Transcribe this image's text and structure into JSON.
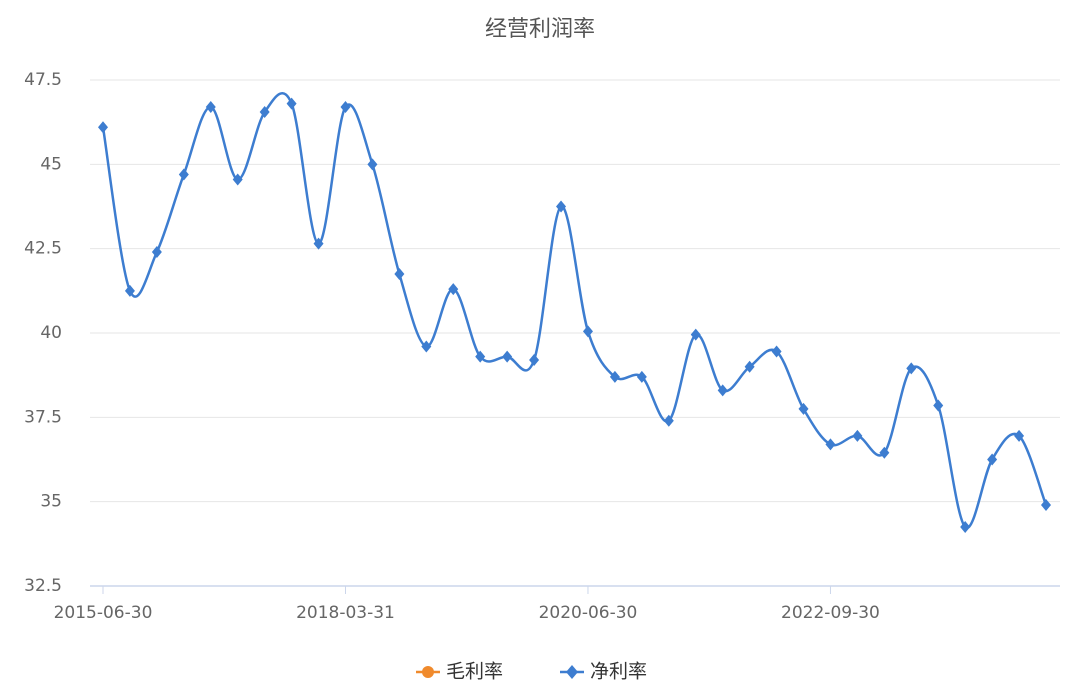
{
  "chart_data": {
    "type": "line",
    "title": "经营利润率",
    "categories": [
      "2015-06-30",
      null,
      null,
      null,
      null,
      null,
      null,
      null,
      null,
      "2018-03-31",
      null,
      null,
      null,
      null,
      null,
      null,
      null,
      null,
      "2020-06-30",
      null,
      null,
      null,
      null,
      null,
      null,
      null,
      null,
      "2022-09-30",
      null,
      null,
      null,
      null,
      null,
      null,
      null,
      null
    ],
    "series": [
      {
        "name": "毛利率",
        "color": "#f08a2c",
        "values": [
          null,
          null,
          null,
          null,
          null,
          null,
          null,
          null,
          null,
          null,
          null,
          null,
          null,
          null,
          null,
          null,
          null,
          null,
          null,
          null,
          null,
          null,
          null,
          null,
          null,
          null,
          null,
          null,
          null,
          null,
          null,
          null,
          null,
          null,
          null,
          null
        ]
      },
      {
        "name": "净利率",
        "color": "#3d7dd0",
        "values": [
          46.1,
          41.25,
          42.4,
          44.7,
          46.7,
          44.55,
          46.55,
          46.8,
          42.65,
          46.7,
          45.0,
          41.75,
          39.6,
          41.3,
          39.3,
          39.3,
          39.2,
          43.75,
          40.05,
          38.7,
          38.7,
          37.4,
          39.95,
          38.3,
          39.0,
          39.45,
          37.75,
          36.7,
          36.95,
          36.45,
          38.95,
          37.85,
          34.25,
          36.25,
          36.95,
          34.9
        ]
      }
    ],
    "ylim": [
      32.5,
      47.5
    ],
    "yticks": [
      32.5,
      35,
      37.5,
      40,
      42.5,
      45,
      47.5
    ],
    "grid": true
  }
}
